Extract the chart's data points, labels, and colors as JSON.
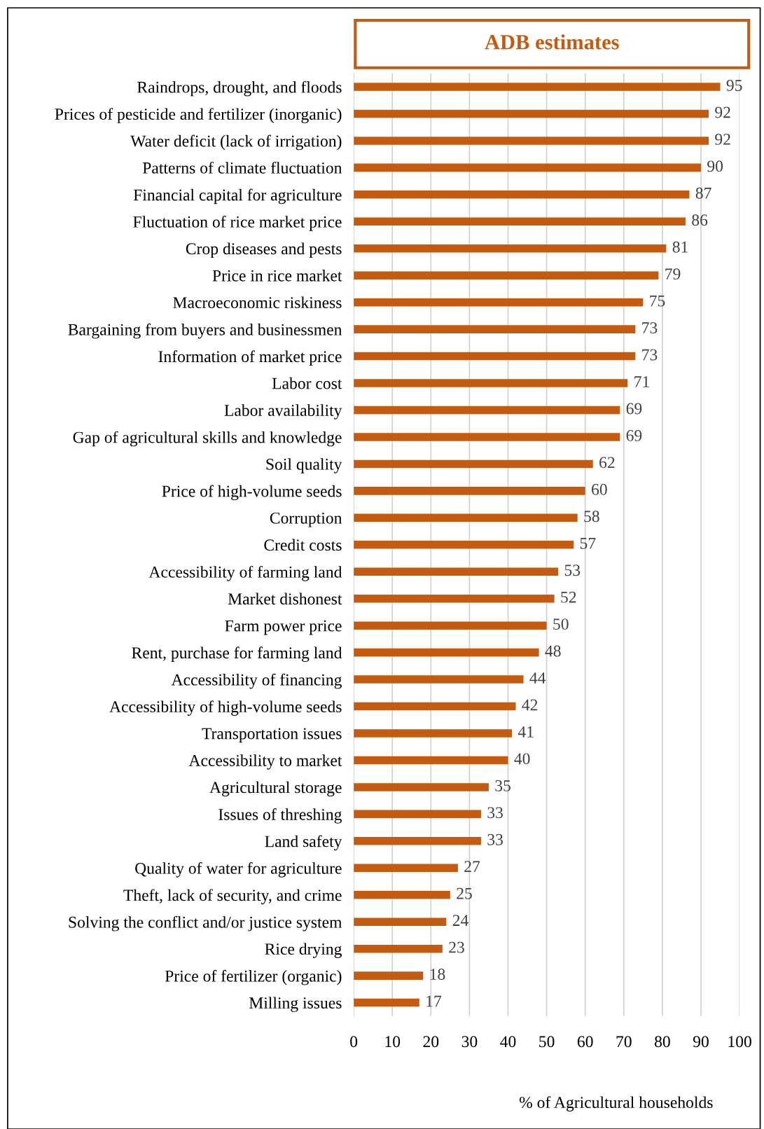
{
  "chart_data": {
    "type": "bar",
    "orientation": "horizontal",
    "title": "ADB estimates",
    "xlabel": "% of Agricultural households",
    "categories": [
      "Raindrops, drought, and floods",
      "Prices of pesticide and fertilizer (inorganic)",
      "Water deficit (lack of irrigation)",
      "Patterns of climate fluctuation",
      "Financial capital for agriculture",
      "Fluctuation of rice market price",
      "Crop diseases and pests",
      "Price in rice market",
      "Macroeconomic riskiness",
      "Bargaining from buyers and businessmen",
      "Information of market price",
      "Labor cost",
      "Labor availability",
      "Gap of agricultural skills and knowledge",
      "Soil quality",
      "Price of high-volume seeds",
      "Corruption",
      "Credit costs",
      "Accessibility of farming land",
      "Market dishonest",
      "Farm power price",
      "Rent, purchase for farming land",
      "Accessibility of financing",
      "Accessibility of high-volume seeds",
      "Transportation issues",
      "Accessibility to market",
      "Agricultural storage",
      "Issues of threshing",
      "Land safety",
      "Quality of water for agriculture",
      "Theft, lack of security, and crime",
      "Solving the conflict and/or justice system",
      "Rice drying",
      "Price of fertilizer (organic)",
      "Milling issues"
    ],
    "values": [
      95,
      92,
      92,
      90,
      87,
      86,
      81,
      79,
      75,
      73,
      73,
      71,
      69,
      69,
      62,
      60,
      58,
      57,
      53,
      52,
      50,
      48,
      44,
      42,
      41,
      40,
      35,
      33,
      33,
      27,
      25,
      24,
      23,
      18,
      17
    ],
    "color": "#c55a11",
    "data_labels": true,
    "xlim": [
      0,
      100
    ],
    "xticks": [
      0,
      10,
      20,
      30,
      40,
      50,
      60,
      70,
      80,
      90,
      100
    ],
    "grid": "x"
  }
}
